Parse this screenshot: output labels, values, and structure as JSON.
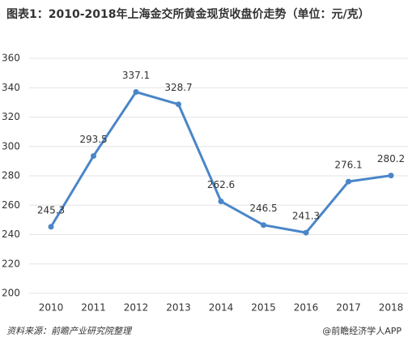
{
  "chart_data": {
    "type": "line",
    "title": "图表1：2010-2018年上海金交所黄金现货收盘价走势（单位：元/克）",
    "source": "资料来源：前瞻产业研究院整理",
    "credit": "@前瞻经济学人APP",
    "categories": [
      "2010",
      "2011",
      "2012",
      "2013",
      "2014",
      "2015",
      "2016",
      "2017",
      "2018"
    ],
    "values": [
      245.3,
      293.5,
      337.1,
      328.7,
      262.6,
      246.5,
      241.3,
      276.1,
      280.2
    ],
    "color": "#4a86c8",
    "ylim": [
      200,
      360
    ],
    "yticks": [
      200,
      220,
      240,
      260,
      280,
      300,
      320,
      340,
      360
    ],
    "grid": true
  }
}
